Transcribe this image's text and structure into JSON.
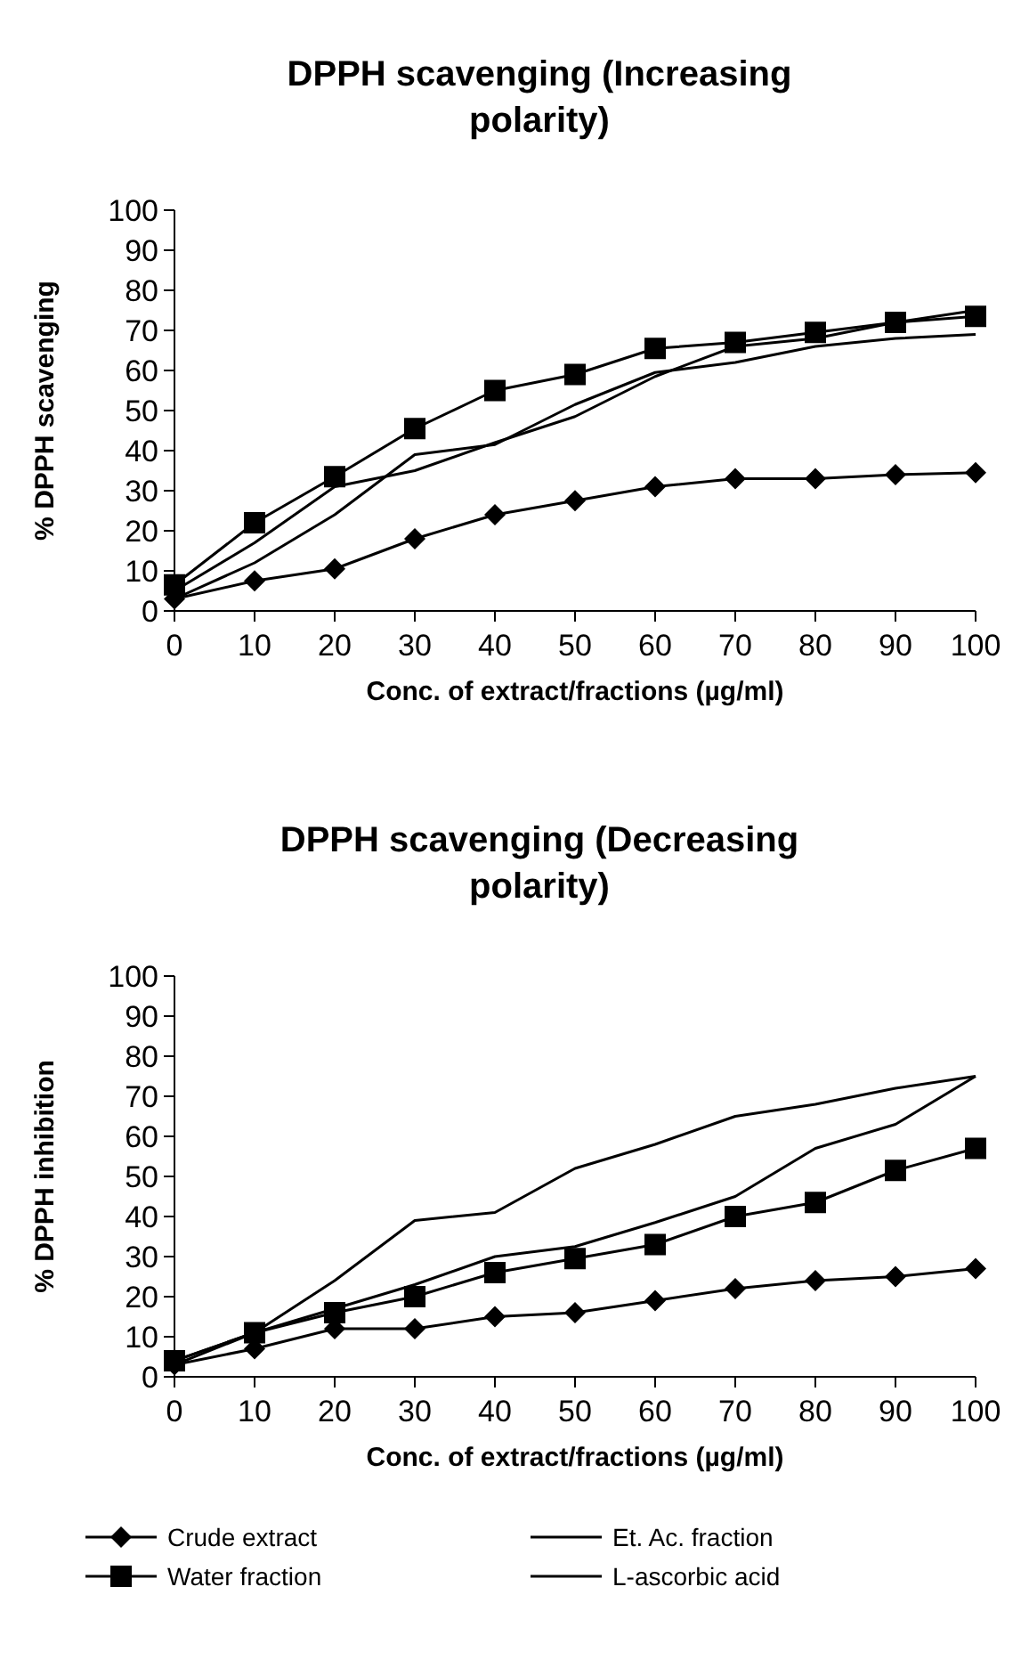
{
  "chart_data": [
    {
      "type": "line",
      "title": "DPPH scavenging (Increasing polarity)",
      "xlabel": "Conc. of extract/fractions (µg/ml)",
      "ylabel": "% DPPH scavenging",
      "x": [
        0,
        10,
        20,
        30,
        40,
        50,
        60,
        70,
        80,
        90,
        100
      ],
      "xlim": [
        0,
        100
      ],
      "xticks": [
        0,
        10,
        20,
        30,
        40,
        50,
        60,
        70,
        80,
        90,
        100
      ],
      "ylim": [
        0,
        100
      ],
      "yticks": [
        0,
        10,
        20,
        30,
        40,
        50,
        60,
        70,
        80,
        90,
        100
      ],
      "grid": false,
      "legend": false,
      "series": [
        {
          "color": "#000000",
          "marker": "diamond",
          "values": [
            3,
            7.5,
            10.5,
            18,
            24,
            27.5,
            31,
            33,
            33,
            34,
            34.5
          ]
        },
        {
          "color": "#000000",
          "marker": "none",
          "values": [
            5,
            17,
            31,
            35,
            42,
            48.5,
            58.5,
            66,
            68,
            72,
            75
          ]
        },
        {
          "color": "#000000",
          "marker": "square",
          "values": [
            6.5,
            22,
            33.5,
            45.5,
            55,
            59,
            65.5,
            67,
            69.5,
            72,
            73.5
          ]
        },
        {
          "color": "#000000",
          "marker": "none",
          "values": [
            3,
            12,
            24,
            39,
            41.5,
            51.5,
            59.5,
            62,
            66,
            68,
            69
          ]
        }
      ]
    },
    {
      "type": "line",
      "title": "DPPH scavenging (Decreasing polarity)",
      "xlabel": "Conc. of extract/fractions (µg/ml)",
      "ylabel": "% DPPH inhibition",
      "x": [
        0,
        10,
        20,
        30,
        40,
        50,
        60,
        70,
        80,
        90,
        100
      ],
      "xlim": [
        0,
        100
      ],
      "xticks": [
        0,
        10,
        20,
        30,
        40,
        50,
        60,
        70,
        80,
        90,
        100
      ],
      "ylim": [
        0,
        100
      ],
      "yticks": [
        0,
        10,
        20,
        30,
        40,
        50,
        60,
        70,
        80,
        90,
        100
      ],
      "grid": false,
      "legend": "bottom",
      "series": [
        {
          "name": "Crude extract",
          "color": "#000000",
          "marker": "diamond",
          "values": [
            3,
            7,
            12,
            12,
            15,
            16,
            19,
            22,
            24,
            25,
            27
          ]
        },
        {
          "name": "Et. Ac. fraction",
          "color": "#000000",
          "marker": "none",
          "values": [
            4,
            11,
            17,
            23,
            30,
            32.5,
            38.5,
            45,
            57,
            63,
            75
          ]
        },
        {
          "name": "Water fraction",
          "color": "#000000",
          "marker": "square",
          "values": [
            4,
            11,
            16,
            20,
            26,
            29.5,
            33,
            40,
            43.5,
            51.5,
            57
          ]
        },
        {
          "name": "L-ascorbic acid",
          "color": "#000000",
          "marker": "none",
          "values": [
            3,
            11,
            24,
            39,
            41,
            52,
            58,
            65,
            68,
            72,
            75
          ]
        }
      ]
    }
  ]
}
